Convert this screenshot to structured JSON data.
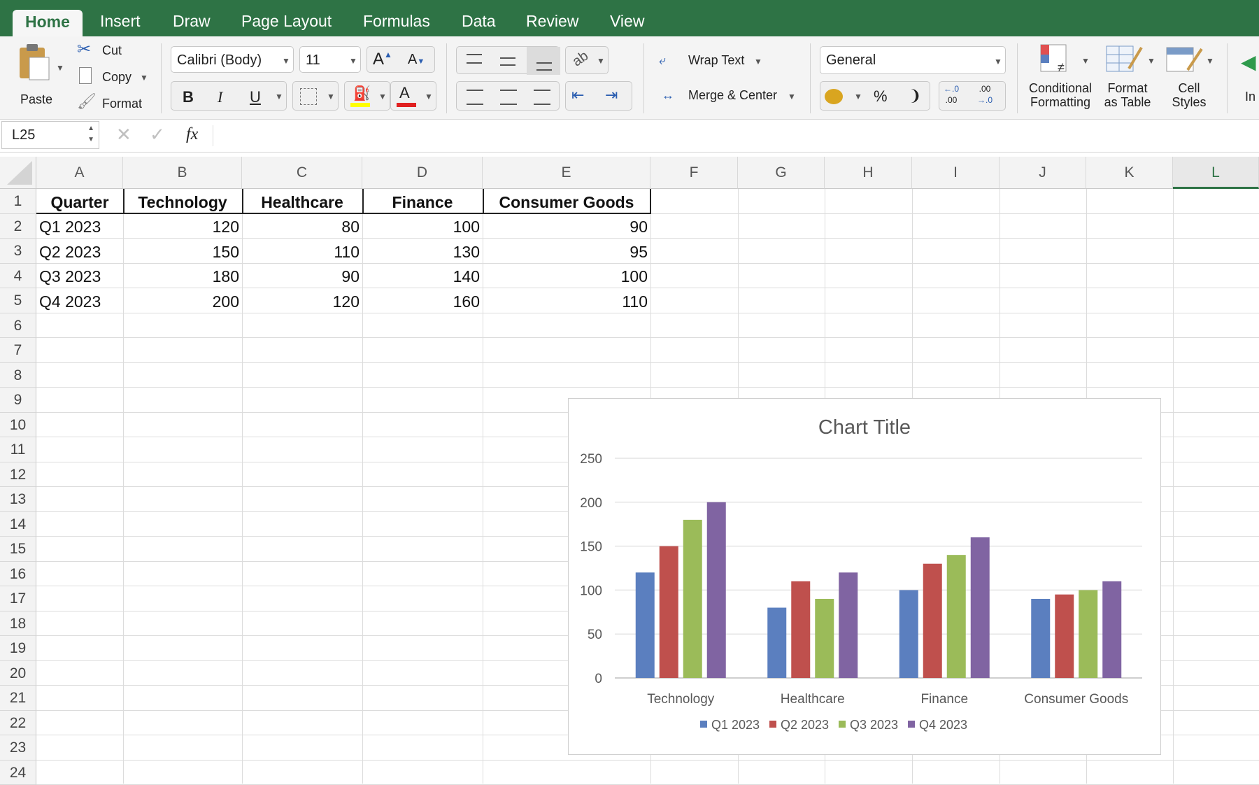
{
  "tabs": [
    {
      "label": "Home",
      "active": true
    },
    {
      "label": "Insert"
    },
    {
      "label": "Draw"
    },
    {
      "label": "Page Layout"
    },
    {
      "label": "Formulas"
    },
    {
      "label": "Data"
    },
    {
      "label": "Review"
    },
    {
      "label": "View"
    }
  ],
  "ribbon": {
    "paste": "Paste",
    "cut": "Cut",
    "copy": "Copy",
    "format": "Format",
    "font_name": "Calibri (Body)",
    "font_size": "11",
    "bold": "B",
    "italic": "I",
    "underline": "U",
    "wrap_text": "Wrap Text",
    "merge_center": "Merge & Center",
    "number_format": "General",
    "percent": "%",
    "comma": "❩",
    "inc_decimal_top": "←.0",
    "inc_decimal_bottom": ".00",
    "dec_decimal_top": ".00",
    "dec_decimal_bottom": "→.0",
    "conditional_line1": "Conditional",
    "conditional_line2": "Formatting",
    "format_table_line1": "Format",
    "format_table_line2": "as Table",
    "cell_styles_line1": "Cell",
    "cell_styles_line2": "Styles",
    "insert_partial": "In",
    "font_grow": "A",
    "font_shrink": "A",
    "font_color_letter": "A",
    "colors": {
      "accent": "#2e7345",
      "fill_yellow": "#ffff00",
      "font_red": "#e02020"
    }
  },
  "formula_bar": {
    "name_box": "L25",
    "fx": "fx"
  },
  "grid": {
    "columns": [
      "A",
      "B",
      "C",
      "D",
      "E",
      "F",
      "G",
      "H",
      "I",
      "J",
      "K",
      "L"
    ],
    "selected_column": "L",
    "rows": [
      "1",
      "2",
      "3",
      "4",
      "5",
      "6",
      "7",
      "8",
      "9",
      "10",
      "11",
      "12",
      "13",
      "14",
      "15",
      "16",
      "17",
      "18",
      "19",
      "20",
      "21",
      "22",
      "23",
      "24"
    ],
    "table": {
      "headers": [
        "Quarter",
        "Technology",
        "Healthcare",
        "Finance",
        "Consumer Goods"
      ],
      "rows": [
        [
          "Q1 2023",
          "120",
          "80",
          "100",
          "90"
        ],
        [
          "Q2 2023",
          "150",
          "110",
          "130",
          "95"
        ],
        [
          "Q3 2023",
          "180",
          "90",
          "140",
          "100"
        ],
        [
          "Q4 2023",
          "200",
          "120",
          "160",
          "110"
        ]
      ]
    }
  },
  "chart_data": {
    "type": "bar",
    "title": "Chart Title",
    "categories": [
      "Technology",
      "Healthcare",
      "Finance",
      "Consumer Goods"
    ],
    "series": [
      {
        "name": "Q1 2023",
        "values": [
          120,
          80,
          100,
          90
        ],
        "color": "#5b7fbf"
      },
      {
        "name": "Q2 2023",
        "values": [
          150,
          110,
          130,
          95
        ],
        "color": "#bf504d"
      },
      {
        "name": "Q3 2023",
        "values": [
          180,
          90,
          140,
          100
        ],
        "color": "#9bbb59"
      },
      {
        "name": "Q4 2023",
        "values": [
          200,
          120,
          160,
          110
        ],
        "color": "#8064a2"
      }
    ],
    "ylim": [
      0,
      250
    ],
    "yticks": [
      0,
      50,
      100,
      150,
      200,
      250
    ],
    "grid": true,
    "legend": "bottom"
  }
}
